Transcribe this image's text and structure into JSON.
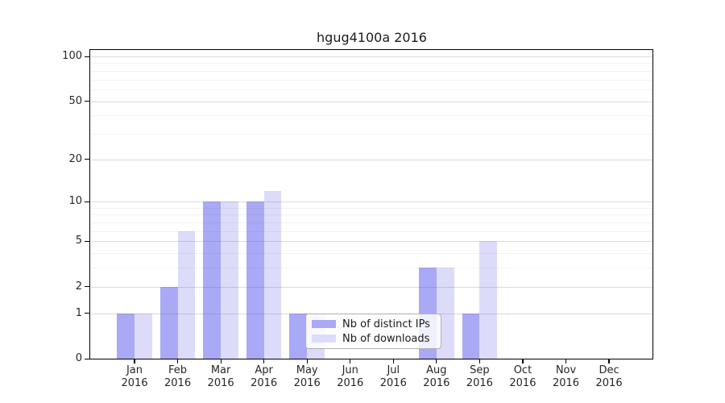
{
  "title": "hgug4100a 2016",
  "colors": {
    "distinct_ips": "#a9a9f5",
    "downloads": "#dcdcfa",
    "axis": "#000000",
    "text": "#262626",
    "grid_major": "rgba(90,90,90,0.22)",
    "grid_minor": "rgba(90,90,90,0.08)"
  },
  "legend": {
    "items": [
      {
        "label": "Nb of distinct IPs",
        "color_key": "distinct_ips"
      },
      {
        "label": "Nb of downloads",
        "color_key": "downloads"
      }
    ]
  },
  "x_axis": {
    "year": "2016",
    "months": [
      "Jan",
      "Feb",
      "Mar",
      "Apr",
      "May",
      "Jun",
      "Jul",
      "Aug",
      "Sep",
      "Oct",
      "Nov",
      "Dec"
    ]
  },
  "y_axis": {
    "ticks": [
      0,
      1,
      2,
      5,
      10,
      20,
      50,
      100
    ],
    "minor_gridlines": [
      3,
      4,
      6,
      7,
      8,
      9,
      30,
      40,
      60,
      70,
      80,
      90
    ],
    "scale": "log10(value+1)",
    "max": 100
  },
  "chart_data": {
    "type": "bar",
    "title": "hgug4100a 2016",
    "categories": [
      "Jan 2016",
      "Feb 2016",
      "Mar 2016",
      "Apr 2016",
      "May 2016",
      "Jun 2016",
      "Jul 2016",
      "Aug 2016",
      "Sep 2016",
      "Oct 2016",
      "Nov 2016",
      "Dec 2016"
    ],
    "series": [
      {
        "name": "Nb of distinct IPs",
        "values": [
          1,
          2,
          10,
          10,
          1,
          0,
          0,
          3,
          1,
          0,
          0,
          0
        ]
      },
      {
        "name": "Nb of downloads",
        "values": [
          1,
          6,
          10,
          12,
          1,
          0,
          0,
          3,
          5,
          0,
          0,
          0
        ]
      }
    ],
    "ylim": [
      0,
      100
    ],
    "y_scale": "log10(value+1)",
    "y_ticks": [
      0,
      1,
      2,
      5,
      10,
      20,
      50,
      100
    ],
    "grid": true,
    "legend_position": "inside-bottom-center"
  }
}
